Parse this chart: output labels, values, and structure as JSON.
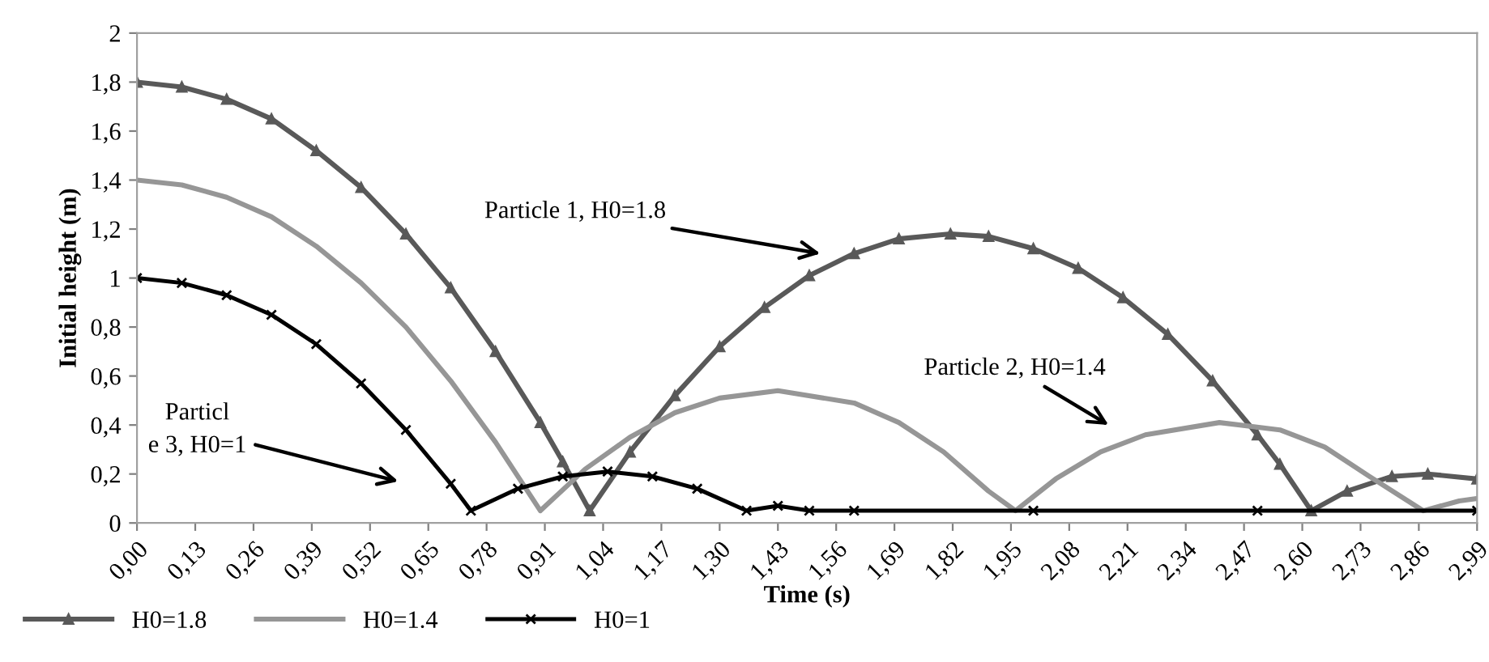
{
  "chart_data": {
    "type": "line",
    "xlabel": "Time (s)",
    "ylabel": "Initial height (m)",
    "xlim": [
      0,
      2.99
    ],
    "ylim": [
      0,
      2
    ],
    "xticks": [
      {
        "value": 0,
        "label": "0,00"
      },
      {
        "value": 0.13,
        "label": "0,13"
      },
      {
        "value": 0.26,
        "label": "0,26"
      },
      {
        "value": 0.39,
        "label": "0,39"
      },
      {
        "value": 0.52,
        "label": "0,52"
      },
      {
        "value": 0.65,
        "label": "0,65"
      },
      {
        "value": 0.78,
        "label": "0,78"
      },
      {
        "value": 0.91,
        "label": "0,91"
      },
      {
        "value": 1.04,
        "label": "1,04"
      },
      {
        "value": 1.17,
        "label": "1,17"
      },
      {
        "value": 1.3,
        "label": "1,30"
      },
      {
        "value": 1.43,
        "label": "1,43"
      },
      {
        "value": 1.56,
        "label": "1,56"
      },
      {
        "value": 1.69,
        "label": "1,69"
      },
      {
        "value": 1.82,
        "label": "1,82"
      },
      {
        "value": 1.95,
        "label": "1,95"
      },
      {
        "value": 2.08,
        "label": "2,08"
      },
      {
        "value": 2.21,
        "label": "2,21"
      },
      {
        "value": 2.34,
        "label": "2,34"
      },
      {
        "value": 2.47,
        "label": "2,47"
      },
      {
        "value": 2.6,
        "label": "2,60"
      },
      {
        "value": 2.73,
        "label": "2,73"
      },
      {
        "value": 2.86,
        "label": "2,86"
      },
      {
        "value": 2.99,
        "label": "2,99"
      }
    ],
    "yticks": [
      0,
      {
        "value": 0.2,
        "label": "0,2"
      },
      {
        "value": 0.4,
        "label": "0,4"
      },
      {
        "value": 0.6,
        "label": "0,6"
      },
      {
        "value": 0.8,
        "label": "0,8"
      },
      1,
      {
        "value": 1.2,
        "label": "1,2"
      },
      {
        "value": 1.4,
        "label": "1,4"
      },
      {
        "value": 1.6,
        "label": "1,6"
      },
      {
        "value": 1.8,
        "label": "1,8"
      },
      2
    ],
    "grid": false,
    "legend": "bottom left",
    "series": [
      {
        "name": "H0=1.8",
        "color": "#595959",
        "marker": "triangle",
        "x": [
          0,
          0.1,
          0.2,
          0.3,
          0.4,
          0.5,
          0.6,
          0.7,
          0.8,
          0.9,
          0.95,
          1.01,
          1.1,
          1.2,
          1.3,
          1.4,
          1.5,
          1.6,
          1.7,
          1.815,
          1.9,
          2.0,
          2.1,
          2.2,
          2.3,
          2.4,
          2.5,
          2.55,
          2.62,
          2.7,
          2.8,
          2.88,
          2.99
        ],
        "values": [
          1.8,
          1.78,
          1.73,
          1.65,
          1.52,
          1.37,
          1.18,
          0.96,
          0.7,
          0.41,
          0.25,
          0.05,
          0.29,
          0.52,
          0.72,
          0.88,
          1.01,
          1.1,
          1.16,
          1.18,
          1.17,
          1.12,
          1.04,
          0.92,
          0.77,
          0.58,
          0.36,
          0.24,
          0.05,
          0.13,
          0.19,
          0.2,
          0.18
        ]
      },
      {
        "name": "H0=1.4",
        "color": "#969696",
        "marker": "none",
        "x": [
          0,
          0.1,
          0.2,
          0.3,
          0.4,
          0.5,
          0.6,
          0.7,
          0.8,
          0.9,
          1.0,
          1.1,
          1.2,
          1.3,
          1.43,
          1.6,
          1.7,
          1.8,
          1.9,
          1.96,
          2.05,
          2.15,
          2.25,
          2.415,
          2.55,
          2.65,
          2.75,
          2.87,
          2.95,
          2.99
        ],
        "values": [
          1.4,
          1.38,
          1.33,
          1.25,
          1.13,
          0.98,
          0.8,
          0.58,
          0.33,
          0.05,
          0.22,
          0.35,
          0.45,
          0.51,
          0.54,
          0.49,
          0.41,
          0.29,
          0.13,
          0.05,
          0.18,
          0.29,
          0.36,
          0.41,
          0.38,
          0.31,
          0.19,
          0.05,
          0.09,
          0.1
        ]
      },
      {
        "name": "H0=1",
        "color": "#000000",
        "marker": "cross",
        "x": [
          0,
          0.1,
          0.2,
          0.3,
          0.4,
          0.5,
          0.6,
          0.7,
          0.745,
          0.85,
          0.95,
          1.05,
          1.15,
          1.25,
          1.36,
          1.43,
          1.5,
          1.6,
          2.0,
          2.5,
          2.99
        ],
        "values": [
          1,
          0.98,
          0.93,
          0.85,
          0.73,
          0.57,
          0.38,
          0.16,
          0.05,
          0.14,
          0.19,
          0.21,
          0.19,
          0.14,
          0.05,
          0.07,
          0.05,
          0.05,
          0.05,
          0.05,
          0.05
        ]
      }
    ],
    "annotations": [
      "Particle 1, H0=1.8",
      "Particle 2, H0=1.4",
      "Particl\ne 3, H0=1"
    ]
  }
}
